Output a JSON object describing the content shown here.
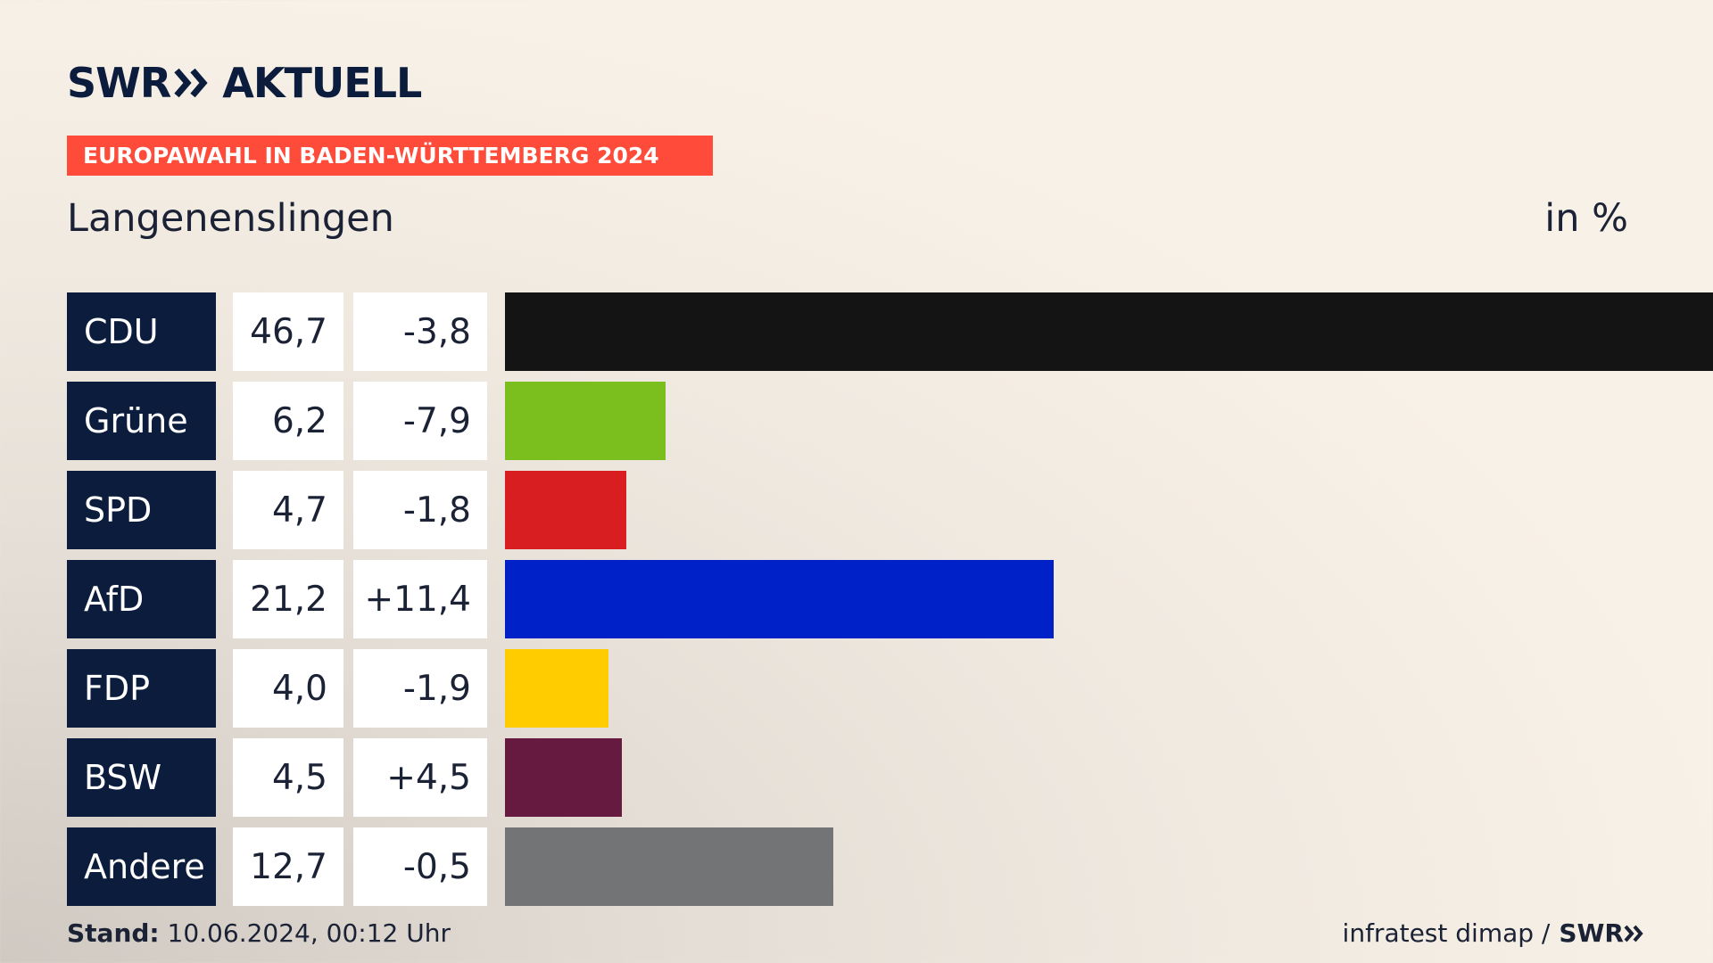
{
  "logo": {
    "brand": "SWR",
    "product": "AKTUELL"
  },
  "banner": "EUROPAWAHL IN BADEN-WÜRTTEMBERG 2024",
  "place": "Langenenslingen",
  "unit": "in %",
  "colors": {
    "navy": "#0b1c3d",
    "banner": "#ff4b3a"
  },
  "chart_data": {
    "type": "bar",
    "orientation": "horizontal",
    "categories": [
      "CDU",
      "Grüne",
      "SPD",
      "AfD",
      "FDP",
      "BSW",
      "Andere"
    ],
    "values": [
      46.7,
      6.2,
      4.7,
      21.2,
      4.0,
      4.5,
      12.7
    ],
    "value_labels": [
      "46,7",
      "6,2",
      "4,7",
      "21,2",
      "4,0",
      "4,5",
      "12,7"
    ],
    "change_labels": [
      "-3,8",
      "-7,9",
      "-1,8",
      "+11,4",
      "-1,9",
      "+4,5",
      "-0,5"
    ],
    "changes": [
      -3.8,
      -7.9,
      -1.8,
      11.4,
      -1.9,
      4.5,
      -0.5
    ],
    "colors": [
      "#141414",
      "#7bbf1e",
      "#d81e20",
      "#0020c8",
      "#ffcc00",
      "#661a3f",
      "#737476"
    ],
    "xlim": [
      0,
      46.7
    ],
    "grid": false
  },
  "footer": {
    "stand_label": "Stand:",
    "stand_value": "10.06.2024, 00:12 Uhr",
    "source": "infratest dimap /",
    "source_brand": "SWR"
  }
}
